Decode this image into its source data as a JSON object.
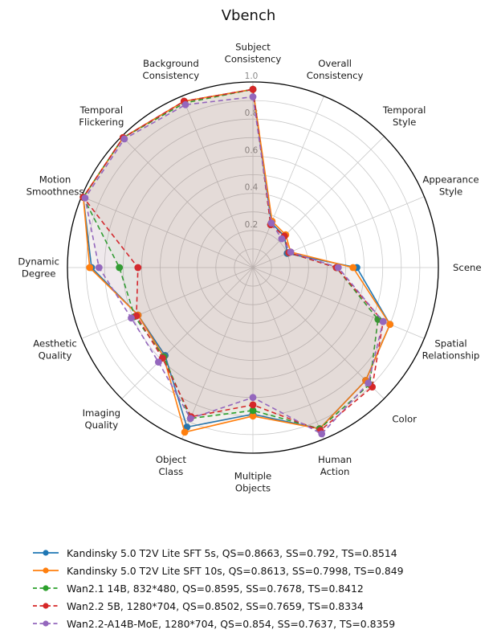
{
  "title": "Vbench",
  "chart_data": {
    "type": "radar",
    "title": "Vbench",
    "categories": [
      "Subject\nConsistency",
      "Overall\nConsistency",
      "Temporal\nStyle",
      "Appearance\nStyle",
      "Scene",
      "Spatial\nRelationship",
      "Color",
      "Human\nAction",
      "Multiple\nObjects",
      "Object\nClass",
      "Imaging\nQuality",
      "Aesthetic\nQuality",
      "Dynamic\nDegree",
      "Motion\nSmoothness",
      "Temporal\nFlickering",
      "Background\nConsistency"
    ],
    "series": [
      {
        "name": "Kandinsky 5.0 T2V Lite SFT 5s, QS=0.8663, SS=0.792, TS=0.8514",
        "color": "#1f77b4",
        "line_style": "solid",
        "values": [
          0.96,
          0.26,
          0.24,
          0.2,
          0.56,
          0.8,
          0.86,
          0.94,
          0.79,
          0.93,
          0.67,
          0.67,
          0.87,
          0.99,
          0.99,
          0.97
        ]
      },
      {
        "name": "Kandinsky 5.0 T2V Lite SFT 10s, QS=0.8613, SS=0.7998, TS=0.849",
        "color": "#ff7f0e",
        "line_style": "solid",
        "values": [
          0.96,
          0.27,
          0.25,
          0.22,
          0.54,
          0.8,
          0.86,
          0.94,
          0.8,
          0.96,
          0.68,
          0.67,
          0.88,
          0.99,
          0.99,
          0.97
        ]
      },
      {
        "name": "Wan2.1 14B, 832*480, QS=0.8595, SS=0.7678, TS=0.8412",
        "color": "#2ca02c",
        "line_style": "dashed",
        "values": [
          0.96,
          0.25,
          0.24,
          0.21,
          0.45,
          0.73,
          0.89,
          0.94,
          0.77,
          0.88,
          0.68,
          0.69,
          0.72,
          0.99,
          0.99,
          0.96
        ]
      },
      {
        "name": "Wan2.2 5B, 1280*704, QS=0.8502, SS=0.7659, TS=0.8334",
        "color": "#d62728",
        "line_style": "dashed",
        "values": [
          0.96,
          0.25,
          0.24,
          0.21,
          0.45,
          0.76,
          0.91,
          0.95,
          0.74,
          0.87,
          0.69,
          0.68,
          0.62,
          0.99,
          0.99,
          0.97
        ]
      },
      {
        "name": "Wan2.2-A14B-MoE, 1280*704, QS=0.854, SS=0.7637, TS=0.8359",
        "color": "#9467bd",
        "line_style": "dashed",
        "values": [
          0.92,
          0.26,
          0.22,
          0.22,
          0.46,
          0.76,
          0.88,
          0.97,
          0.7,
          0.88,
          0.72,
          0.71,
          0.83,
          0.98,
          0.98,
          0.95
        ]
      }
    ],
    "r_ticks": [
      "0.2",
      "0.4",
      "0.6",
      "0.8",
      "1.0"
    ],
    "rlim": [
      0,
      1.0
    ],
    "grid": true,
    "grid_step": 0.1,
    "legend_position": "bottom-left",
    "style": {
      "grid_color": "#c9c9c9",
      "outer_circle_color": "#000000",
      "tick_label_color": "#8a8a8a",
      "category_label_color": "#1a1a1a",
      "fill_opacity": 0.05
    }
  }
}
